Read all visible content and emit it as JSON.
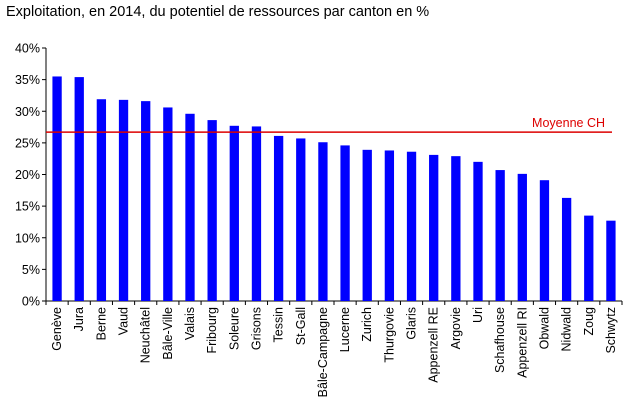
{
  "chart_data": {
    "type": "bar",
    "title": "Exploitation, en 2014, du potentiel de ressources par canton en %",
    "xlabel": "",
    "ylabel": "",
    "ylim": [
      0,
      40
    ],
    "yticks": [
      0,
      5,
      10,
      15,
      20,
      25,
      30,
      35,
      40
    ],
    "ytick_format": "{v}%",
    "grid": false,
    "bar_color": "#0000ff",
    "categories": [
      "Genève",
      "Jura",
      "Berne",
      "Vaud",
      "Neuchâtel",
      "Bâle-Ville",
      "Valais",
      "Fribourg",
      "Soleure",
      "Grisons",
      "Tessin",
      "St-Gall",
      "Bâle-Campagne",
      "Lucerne",
      "Zurich",
      "Thurgovie",
      "Glaris",
      "Appenzell RE",
      "Argovie",
      "Uri",
      "Schafhouse",
      "Appenzell RI",
      "Obwald",
      "Nidwald",
      "Zoug",
      "Schwytz"
    ],
    "values": [
      35.5,
      35.4,
      31.9,
      31.8,
      31.6,
      30.6,
      29.6,
      28.6,
      27.7,
      27.6,
      26.1,
      25.7,
      25.1,
      24.6,
      23.9,
      23.8,
      23.6,
      23.1,
      22.9,
      22.0,
      20.7,
      20.1,
      19.1,
      16.3,
      13.5,
      12.7
    ],
    "reference_line": {
      "label": "Moyenne CH",
      "value": 26.7,
      "color": "#dd0000"
    }
  }
}
